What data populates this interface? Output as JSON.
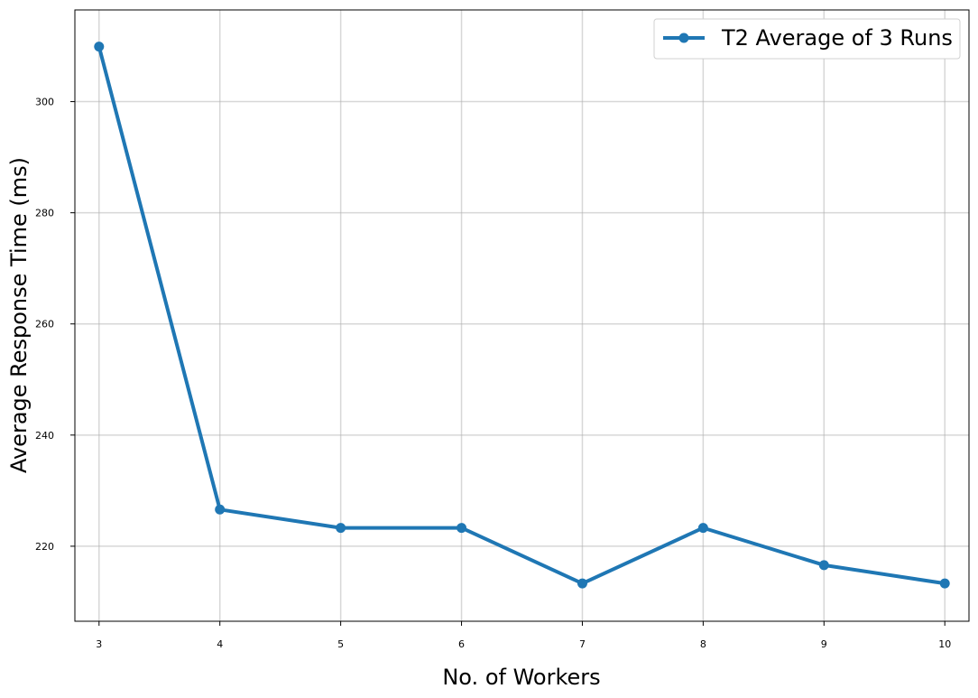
{
  "chart_data": {
    "type": "line",
    "title": "",
    "xlabel": "No. of Workers",
    "ylabel": "Average Response Time (ms)",
    "x": [
      3,
      4,
      5,
      6,
      7,
      8,
      9,
      10
    ],
    "xticks": [
      "3",
      "4",
      "5",
      "6",
      "7",
      "8",
      "9",
      "10"
    ],
    "yticks": [
      "220",
      "240",
      "260",
      "280",
      "300"
    ],
    "xlim": [
      2.8,
      10.2
    ],
    "ylim": [
      206.5,
      316.5
    ],
    "grid": true,
    "legend_position": "top-right",
    "series": [
      {
        "name": "T2 Average of 3 Runs",
        "color": "#1f77b4",
        "marker": "circle",
        "values": [
          309.9,
          226.6,
          223.3,
          223.3,
          213.3,
          223.3,
          216.6,
          213.3
        ]
      }
    ]
  }
}
